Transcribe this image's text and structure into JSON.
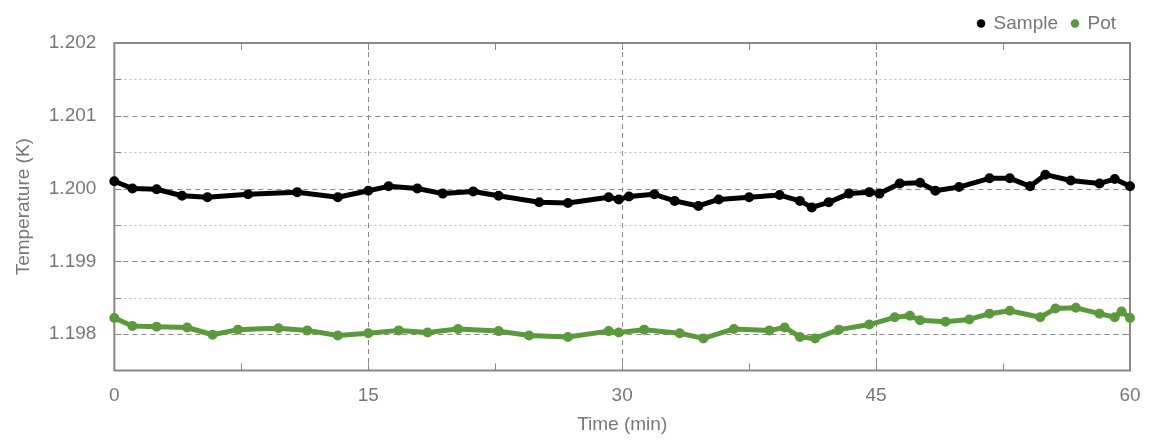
{
  "chart_data": {
    "type": "line",
    "xlabel": "Time (min)",
    "ylabel": "Temperature (K)",
    "xlim": [
      0,
      60
    ],
    "xticks": [
      0,
      {
        "value": 7.5,
        "label": null
      },
      15,
      {
        "value": 22.5,
        "label": null
      },
      30,
      {
        "value": 37.5,
        "label": null
      },
      45,
      {
        "value": 52.5,
        "label": null
      },
      60
    ],
    "ylim": [
      1.1975,
      1.202
    ],
    "yticks": [
      {
        "value": 1.198,
        "label": "1.198"
      },
      {
        "value": 1.1985,
        "label": null
      },
      {
        "value": 1.199,
        "label": "1.199"
      },
      {
        "value": 1.1995,
        "label": null
      },
      {
        "value": 1.2,
        "label": "1.200"
      },
      {
        "value": 1.2005,
        "label": null
      },
      {
        "value": 1.201,
        "label": "1.201"
      },
      {
        "value": 1.2015,
        "label": null
      },
      {
        "value": 1.202,
        "label": "1.202"
      }
    ],
    "grid": true,
    "legend": "top right",
    "marker": "circle",
    "line_style": "solid",
    "series": [
      {
        "name": "Sample",
        "color": "#000000",
        "x": [
          0,
          1.07,
          2.5,
          4,
          5.5,
          7.9,
          10.8,
          13.2,
          15,
          16.2,
          17.9,
          19.4,
          21.2,
          22.7,
          25.1,
          26.8,
          29.2,
          29.8,
          30.4,
          31.9,
          33.1,
          34.5,
          35.7,
          37.5,
          39.3,
          40.5,
          41.2,
          42.2,
          43.4,
          44.6,
          45.2,
          46.4,
          47.6,
          48.5,
          49.9,
          51.7,
          52.9,
          54.1,
          55,
          56.5,
          58.2,
          59.1,
          60
        ],
        "values": [
          1.2001,
          1.2,
          1.19999,
          1.1999,
          1.19988,
          1.19992,
          1.19995,
          1.19988,
          1.19997,
          1.20003,
          1.2,
          1.19993,
          1.19996,
          1.1999,
          1.19981,
          1.1998,
          1.19988,
          1.19985,
          1.19989,
          1.19992,
          1.19983,
          1.19976,
          1.19985,
          1.19988,
          1.19991,
          1.19983,
          1.19974,
          1.19981,
          1.19993,
          1.19995,
          1.19993,
          1.20007,
          1.20008,
          1.19997,
          1.20002,
          1.20014,
          1.20014,
          1.20003,
          1.20019,
          1.20011,
          1.20007,
          1.20013,
          1.20003
        ]
      },
      {
        "name": "Pot",
        "color": "#5a9a3c",
        "x": [
          0,
          1.07,
          2.5,
          4.3,
          5.8,
          7.3,
          9.7,
          11.4,
          13.2,
          15,
          16.8,
          18.5,
          20.3,
          22.7,
          24.5,
          26.8,
          29.2,
          29.8,
          31.3,
          33.4,
          34.8,
          36.6,
          38.7,
          39.6,
          40.5,
          41.4,
          42.8,
          44.6,
          46.1,
          47,
          47.6,
          49.1,
          50.5,
          51.7,
          52.9,
          54.7,
          55.6,
          56.8,
          58.2,
          59.1,
          59.5,
          60
        ],
        "values": [
          1.19822,
          1.19811,
          1.1981,
          1.19809,
          1.19799,
          1.19806,
          1.19808,
          1.19805,
          1.19798,
          1.19801,
          1.19805,
          1.19802,
          1.19807,
          1.19804,
          1.19798,
          1.19796,
          1.19804,
          1.19802,
          1.19806,
          1.19801,
          1.19794,
          1.19807,
          1.19805,
          1.19809,
          1.19796,
          1.19794,
          1.19806,
          1.19813,
          1.19823,
          1.19825,
          1.19819,
          1.19817,
          1.1982,
          1.19828,
          1.19832,
          1.19823,
          1.19835,
          1.19836,
          1.19828,
          1.19823,
          1.19831,
          1.19822
        ]
      }
    ]
  }
}
